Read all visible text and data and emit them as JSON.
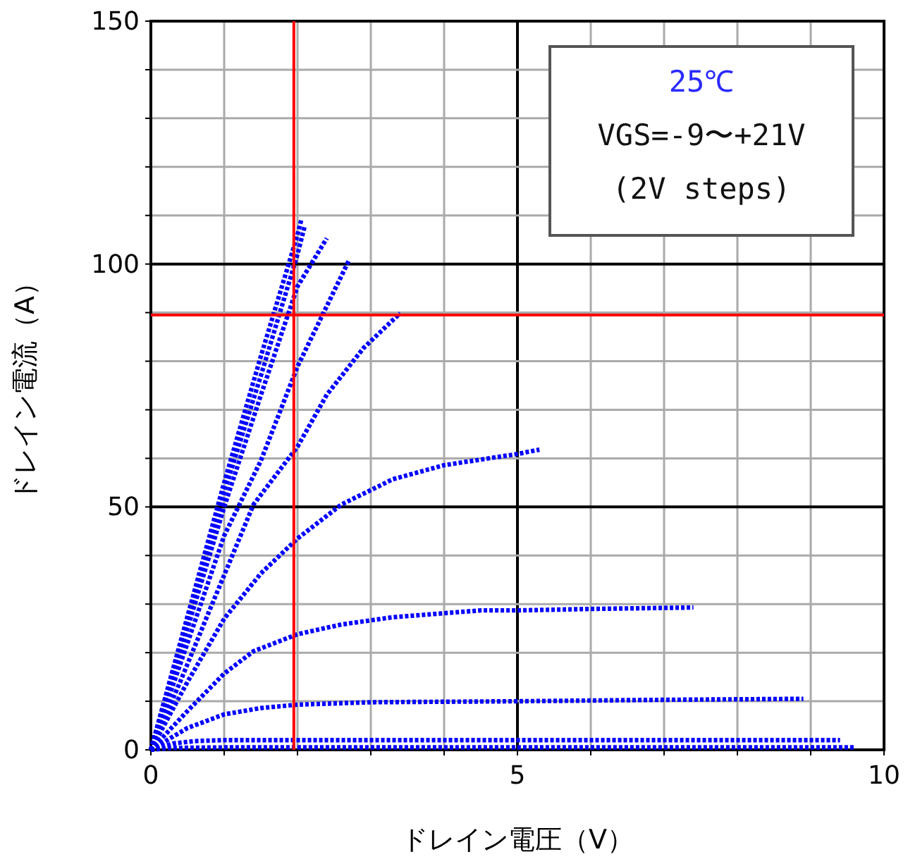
{
  "chart_data": {
    "type": "line",
    "xlabel": "ドレイン電圧（V）",
    "ylabel": "ドレイン電流（A）",
    "xlim": [
      0,
      10
    ],
    "ylim": [
      0,
      150
    ],
    "xticks": [
      0,
      {
        "value": 1,
        "label": null
      },
      {
        "value": 2,
        "label": null
      },
      {
        "value": 3,
        "label": null
      },
      {
        "value": 4,
        "label": null
      },
      5,
      {
        "value": 6,
        "label": null
      },
      {
        "value": 7,
        "label": null
      },
      {
        "value": 8,
        "label": null
      },
      {
        "value": 9,
        "label": null
      },
      10
    ],
    "yticks": [
      0,
      {
        "value": 10,
        "label": null
      },
      {
        "value": 20,
        "label": null
      },
      {
        "value": 30,
        "label": null
      },
      {
        "value": 40,
        "label": null
      },
      50,
      {
        "value": 60,
        "label": null
      },
      {
        "value": 70,
        "label": null
      },
      {
        "value": 80,
        "label": null
      },
      {
        "value": 90,
        "label": null
      },
      100,
      {
        "value": 110,
        "label": null
      },
      {
        "value": 120,
        "label": null
      },
      {
        "value": 130,
        "label": null
      },
      {
        "value": 140,
        "label": null
      },
      150
    ],
    "grid": true,
    "line_style": "dotted",
    "marker": "none",
    "annotations": [
      "25℃",
      "VGS=-9〜+21V",
      "(2V steps)"
    ],
    "ref_lines": [
      {
        "axis": "x",
        "value": 1.95,
        "color": "#ff0000"
      },
      {
        "axis": "y",
        "value": 89.5,
        "color": "#ff0000"
      }
    ],
    "series": [
      {
        "color": "#0000ff",
        "x": [
          0,
          0.3,
          1,
          3,
          6,
          9.6
        ],
        "values": [
          0,
          0.4,
          0.5,
          0.5,
          0.5,
          0.5
        ]
      },
      {
        "color": "#0000ff",
        "x": [
          0,
          0.3,
          0.6,
          1,
          3,
          6,
          9.4
        ],
        "values": [
          0,
          1.3,
          1.8,
          2,
          2,
          2,
          2
        ]
      },
      {
        "color": "#0000ff",
        "x": [
          0,
          0.5,
          1,
          1.5,
          2,
          3,
          5,
          7,
          8.9
        ],
        "values": [
          0,
          4.5,
          7.3,
          8.6,
          9.3,
          9.8,
          10,
          10.3,
          10.5
        ]
      },
      {
        "color": "#0000ff",
        "x": [
          0,
          0.5,
          1,
          1.4,
          2,
          2.6,
          3.3,
          4.5,
          5,
          6,
          7.4
        ],
        "values": [
          0,
          8,
          15.7,
          20.3,
          23.8,
          25.8,
          27.3,
          28.7,
          28.7,
          29,
          29.3
        ]
      },
      {
        "color": "#0000ff",
        "x": [
          0,
          0.5,
          1,
          1.5,
          2,
          2.6,
          3.3,
          4,
          5,
          5.3
        ],
        "values": [
          0,
          14,
          27,
          36.3,
          43.5,
          50.5,
          55.7,
          58.6,
          60.9,
          61.8
        ]
      },
      {
        "color": "#0000ff",
        "x": [
          0,
          0.4,
          0.8,
          1.4,
          2,
          2.4,
          2.9,
          3.4
        ],
        "values": [
          0,
          14,
          28.7,
          50.5,
          62.4,
          73.1,
          82.7,
          89.9
        ]
      },
      {
        "color": "#0000ff",
        "x": [
          0,
          0.5,
          1,
          1.5,
          2,
          2.7
        ],
        "values": [
          0,
          22,
          44.1,
          59.5,
          78.9,
          100.7
        ]
      },
      {
        "color": "#0000ff",
        "x": [
          0,
          0.5,
          1,
          1.5,
          2,
          2.4
        ],
        "values": [
          0,
          25,
          50,
          73,
          95.4,
          105.3
        ]
      },
      {
        "color": "#0000ff",
        "x": [
          0,
          0.5,
          1,
          1.5,
          2,
          2.1
        ],
        "values": [
          0,
          26.5,
          53,
          77,
          102,
          107.9
        ]
      },
      {
        "color": "#0000ff",
        "x": [
          0,
          0.5,
          1,
          1.5,
          2,
          2.05
        ],
        "values": [
          0,
          27.5,
          55,
          81,
          106,
          109
        ]
      }
    ]
  }
}
